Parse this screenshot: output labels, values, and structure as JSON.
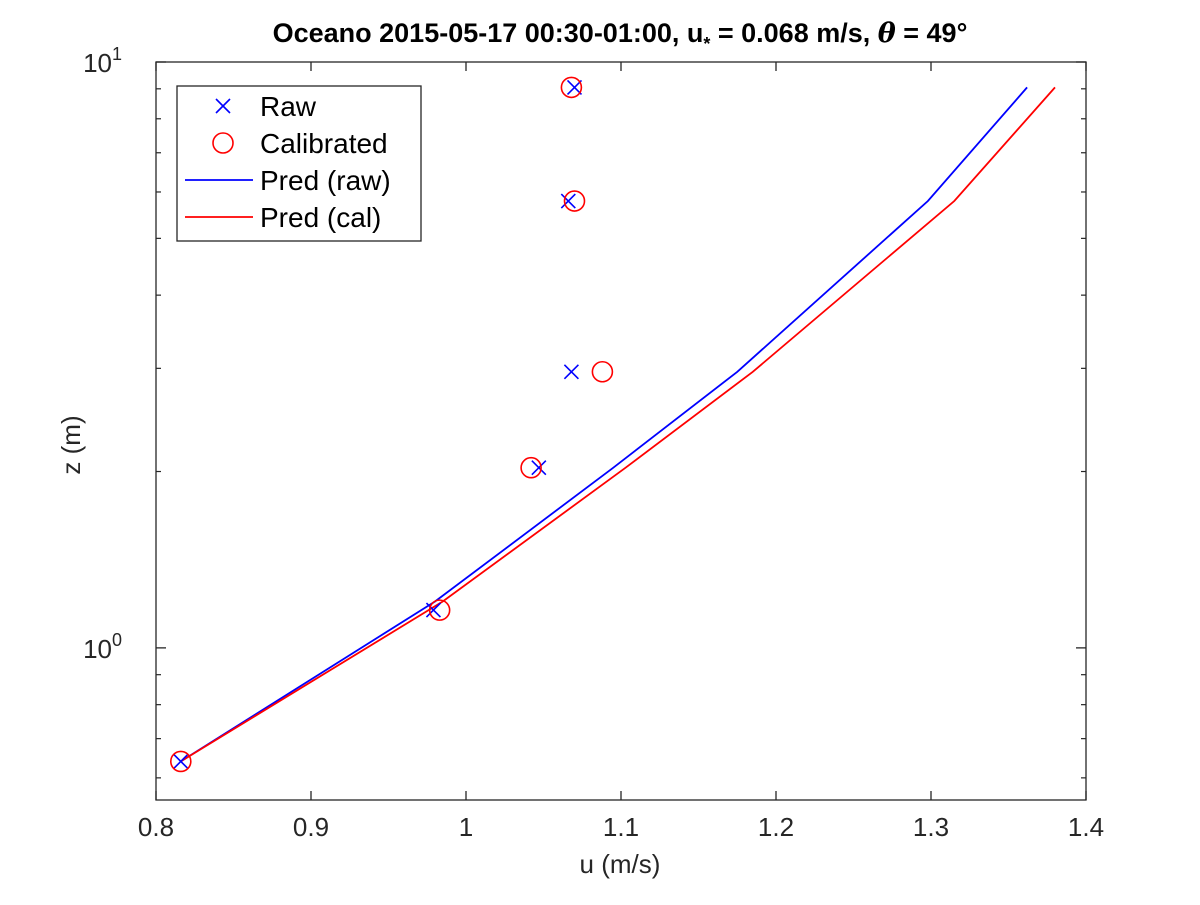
{
  "chart_data": {
    "type": "scatter",
    "title": {
      "prefix": "Oceano 2015-05-17 00:30-01:00, u",
      "subscript": "*",
      "middle": " = 0.068 m/s, ",
      "theta_symbol": "θ",
      "suffix": " = 49°"
    },
    "xlabel": "u (m/s)",
    "ylabel": "z (m)",
    "xlim": [
      0.8,
      1.4
    ],
    "ylim": [
      0.55,
      10
    ],
    "yscale": "log",
    "grid": false,
    "legend_position": "top-left",
    "x_ticks": [
      {
        "value": 0.8,
        "label": "0.8"
      },
      {
        "value": 0.9,
        "label": "0.9"
      },
      {
        "value": 1.0,
        "label": "1"
      },
      {
        "value": 1.1,
        "label": "1.1"
      },
      {
        "value": 1.2,
        "label": "1.2"
      },
      {
        "value": 1.3,
        "label": "1.3"
      },
      {
        "value": 1.4,
        "label": "1.4"
      }
    ],
    "y_major_ticks": [
      {
        "value": 1,
        "base": "10",
        "exp": "0"
      },
      {
        "value": 10,
        "base": "10",
        "exp": "1"
      }
    ],
    "series": [
      {
        "name": "Raw",
        "marker": "x",
        "color": "#0000ff",
        "points": [
          [
            0.816,
            0.64
          ],
          [
            0.979,
            1.16
          ],
          [
            1.047,
            2.03
          ],
          [
            1.068,
            2.96
          ],
          [
            1.066,
            5.79
          ],
          [
            1.07,
            9.05
          ]
        ]
      },
      {
        "name": "Calibrated",
        "marker": "circle",
        "color": "#ff0000",
        "points": [
          [
            0.816,
            0.64
          ],
          [
            0.983,
            1.16
          ],
          [
            1.042,
            2.03
          ],
          [
            1.088,
            2.96
          ],
          [
            1.07,
            5.79
          ],
          [
            1.068,
            9.05
          ]
        ]
      },
      {
        "name": "Pred (raw)",
        "marker": "line",
        "color": "#0000ff",
        "points": [
          [
            0.816,
            0.64
          ],
          [
            0.98,
            1.2
          ],
          [
            1.095,
            2.03
          ],
          [
            1.175,
            2.96
          ],
          [
            1.298,
            5.79
          ],
          [
            1.362,
            9.05
          ]
        ]
      },
      {
        "name": "Pred (cal)",
        "marker": "line",
        "color": "#ff0000",
        "points": [
          [
            0.816,
            0.64
          ],
          [
            0.985,
            1.2
          ],
          [
            1.103,
            2.03
          ],
          [
            1.185,
            2.96
          ],
          [
            1.315,
            5.79
          ],
          [
            1.38,
            9.05
          ]
        ]
      }
    ]
  }
}
